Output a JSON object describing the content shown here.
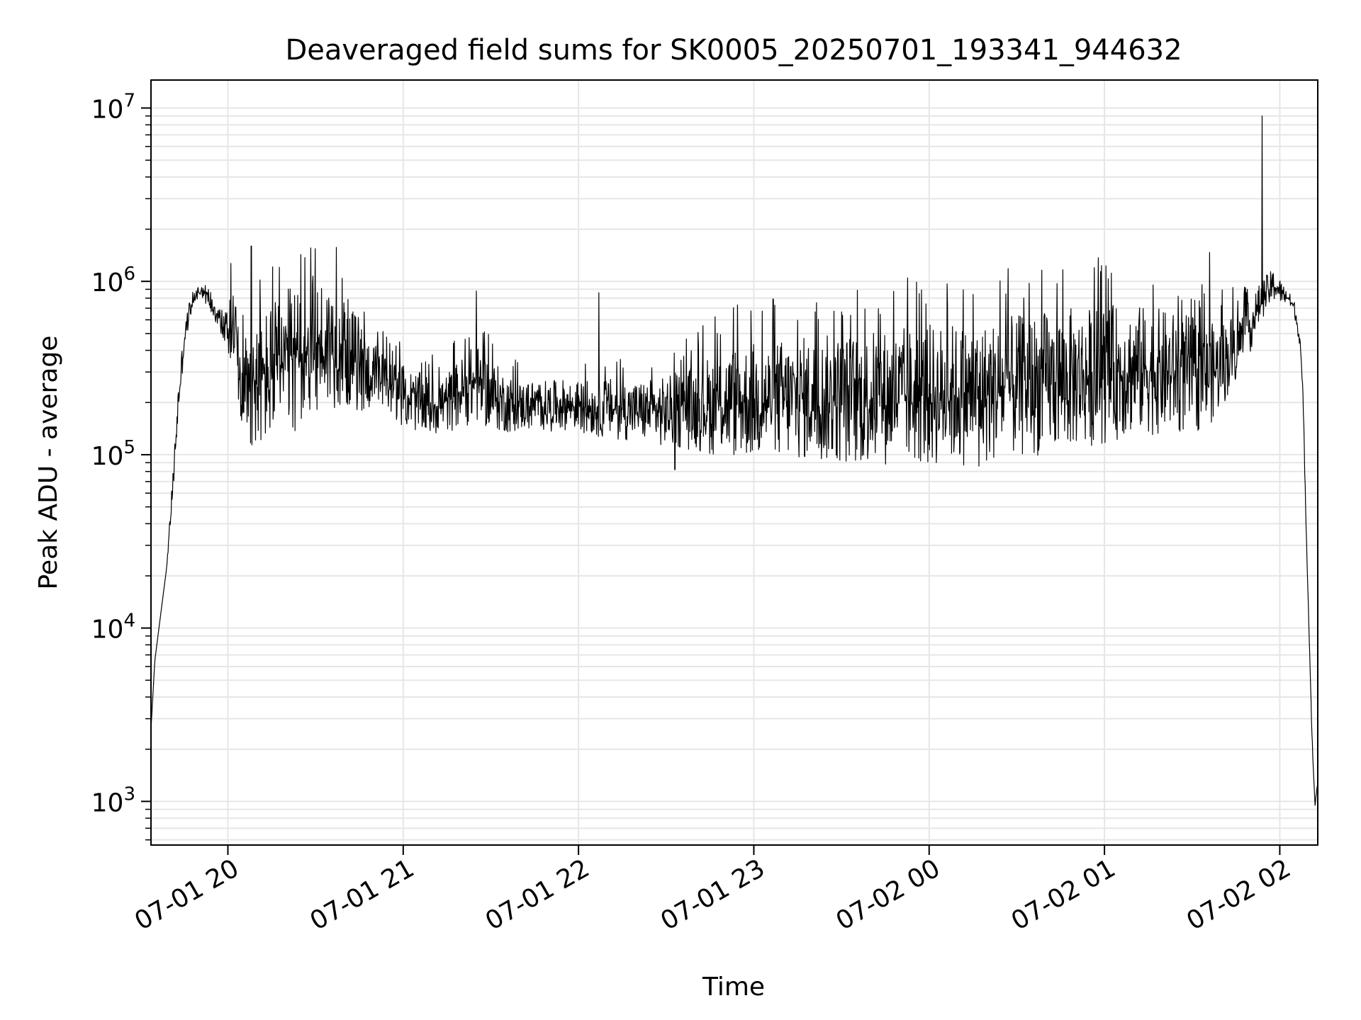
{
  "chart_data": {
    "type": "line",
    "title": "Deaveraged field sums for SK0005_20250701_193341_944632",
    "xlabel": "Time",
    "ylabel": "Peak ADU - average",
    "yscale": "log",
    "ylim": [
      560,
      14500000
    ],
    "xlim": [
      "2025-07-01 19:33:41",
      "2025-07-02 02:13:00"
    ],
    "x_ticks": [
      {
        "value": "2025-07-01 20:00",
        "label": "07-01 20"
      },
      {
        "value": "2025-07-01 21:00",
        "label": "07-01 21"
      },
      {
        "value": "2025-07-01 22:00",
        "label": "07-01 22"
      },
      {
        "value": "2025-07-01 23:00",
        "label": "07-01 23"
      },
      {
        "value": "2025-07-02 00:00",
        "label": "07-02 00"
      },
      {
        "value": "2025-07-02 01:00",
        "label": "07-02 01"
      },
      {
        "value": "2025-07-02 02:00",
        "label": "07-02 02"
      }
    ],
    "y_ticks": [
      {
        "value": 1000,
        "base": "10",
        "exp": "3"
      },
      {
        "value": 10000,
        "base": "10",
        "exp": "4"
      },
      {
        "value": 100000,
        "base": "10",
        "exp": "5"
      },
      {
        "value": 1000000,
        "base": "10",
        "exp": "6"
      },
      {
        "value": 10000000,
        "base": "10",
        "exp": "7"
      }
    ],
    "grid": true,
    "line_color": "#000000",
    "grid_color": "#e6e6e6",
    "series": [
      {
        "x": [
          "2025-07-01 19:33:41",
          "2025-07-01 19:35",
          "2025-07-01 19:37",
          "2025-07-01 19:39",
          "2025-07-01 19:41",
          "2025-07-01 19:43",
          "2025-07-01 19:45",
          "2025-07-01 19:47",
          "2025-07-01 19:49",
          "2025-07-01 19:51",
          "2025-07-01 19:53",
          "2025-07-01 19:56",
          "2025-07-01 19:58",
          "2025-07-01 20:00",
          "2025-07-01 20:03",
          "2025-07-01 20:05",
          "2025-07-01 20:08",
          "2025-07-01 20:11",
          "2025-07-01 20:15",
          "2025-07-01 20:20",
          "2025-07-01 20:25",
          "2025-07-01 20:30",
          "2025-07-01 20:35",
          "2025-07-01 20:40",
          "2025-07-01 20:45",
          "2025-07-01 20:50",
          "2025-07-01 20:55",
          "2025-07-01 21:00",
          "2025-07-01 21:05",
          "2025-07-01 21:10",
          "2025-07-01 21:15",
          "2025-07-01 21:20",
          "2025-07-01 21:25",
          "2025-07-01 21:30",
          "2025-07-01 21:35",
          "2025-07-01 21:40",
          "2025-07-01 21:45",
          "2025-07-01 21:50",
          "2025-07-01 21:55",
          "2025-07-01 22:00",
          "2025-07-01 22:10",
          "2025-07-01 22:20",
          "2025-07-01 22:30",
          "2025-07-01 22:40",
          "2025-07-01 22:50",
          "2025-07-01 23:00",
          "2025-07-01 23:15",
          "2025-07-01 23:30",
          "2025-07-01 23:45",
          "2025-07-02 00:00",
          "2025-07-02 00:15",
          "2025-07-02 00:30",
          "2025-07-02 00:45",
          "2025-07-02 01:00",
          "2025-07-02 01:10",
          "2025-07-02 01:20",
          "2025-07-02 01:30",
          "2025-07-02 01:35",
          "2025-07-02 01:40",
          "2025-07-02 01:45",
          "2025-07-02 01:50",
          "2025-07-02 01:54",
          "2025-07-02 01:58",
          "2025-07-02 02:01",
          "2025-07-02 02:03",
          "2025-07-02 02:05",
          "2025-07-02 02:07",
          "2025-07-02 02:08",
          "2025-07-02 02:09",
          "2025-07-02 02:10",
          "2025-07-02 02:11",
          "2025-07-02 02:12",
          "2025-07-02 02:13"
        ],
        "y": [
          2600,
          6500,
          12000,
          22000,
          60000,
          200000,
          450000,
          700000,
          850000,
          900000,
          820000,
          680000,
          560000,
          520000,
          350000,
          280000,
          250000,
          260000,
          300000,
          330000,
          380000,
          420000,
          440000,
          400000,
          330000,
          280000,
          250000,
          220000,
          200000,
          190000,
          200000,
          230000,
          260000,
          220000,
          200000,
          190000,
          195000,
          190000,
          195000,
          190000,
          185000,
          180000,
          175000,
          190000,
          200000,
          205000,
          210000,
          210000,
          215000,
          220000,
          225000,
          245000,
          270000,
          290000,
          310000,
          300000,
          290000,
          280000,
          330000,
          420000,
          550000,
          800000,
          950000,
          850000,
          800000,
          700000,
          450000,
          200000,
          40000,
          10000,
          2500,
          950,
          1300
        ],
        "spread": [
          1,
          1,
          1,
          1,
          1.2,
          1.3,
          1.2,
          1.15,
          1.1,
          1.1,
          1.15,
          1.2,
          1.3,
          1.4,
          1.7,
          1.9,
          2.2,
          2.4,
          2.6,
          2.7,
          2.8,
          2.6,
          2.4,
          2.1,
          1.9,
          1.6,
          1.5,
          1.5,
          1.5,
          1.5,
          1.5,
          1.6,
          1.7,
          1.6,
          1.5,
          1.4,
          1.4,
          1.4,
          1.4,
          1.4,
          1.5,
          1.5,
          1.6,
          1.8,
          2.1,
          2.2,
          2.3,
          2.4,
          2.5,
          2.6,
          2.6,
          2.6,
          2.6,
          2.5,
          2.4,
          2.3,
          2.2,
          2.0,
          1.8,
          1.6,
          1.4,
          1.3,
          1.25,
          1.15,
          1.1,
          1.1,
          1.1,
          1.1,
          1.05,
          1.05,
          1.05,
          1.05,
          1.05
        ],
        "spikes": [
          {
            "x": "2025-07-01 20:01",
            "y": 1270000
          },
          {
            "x": "2025-07-01 20:08",
            "y": 1600000
          },
          {
            "x": "2025-07-01 20:11",
            "y": 1020000
          },
          {
            "x": "2025-07-01 21:25",
            "y": 880000
          },
          {
            "x": "2025-07-01 22:07",
            "y": 860000
          },
          {
            "x": "2025-07-01 22:33",
            "y": 82000
          },
          {
            "x": "2025-07-02 00:17",
            "y": 86000
          },
          {
            "x": "2025-07-02 01:36",
            "y": 1470000
          },
          {
            "x": "2025-07-02 01:54",
            "y": 9000000
          }
        ]
      }
    ]
  }
}
